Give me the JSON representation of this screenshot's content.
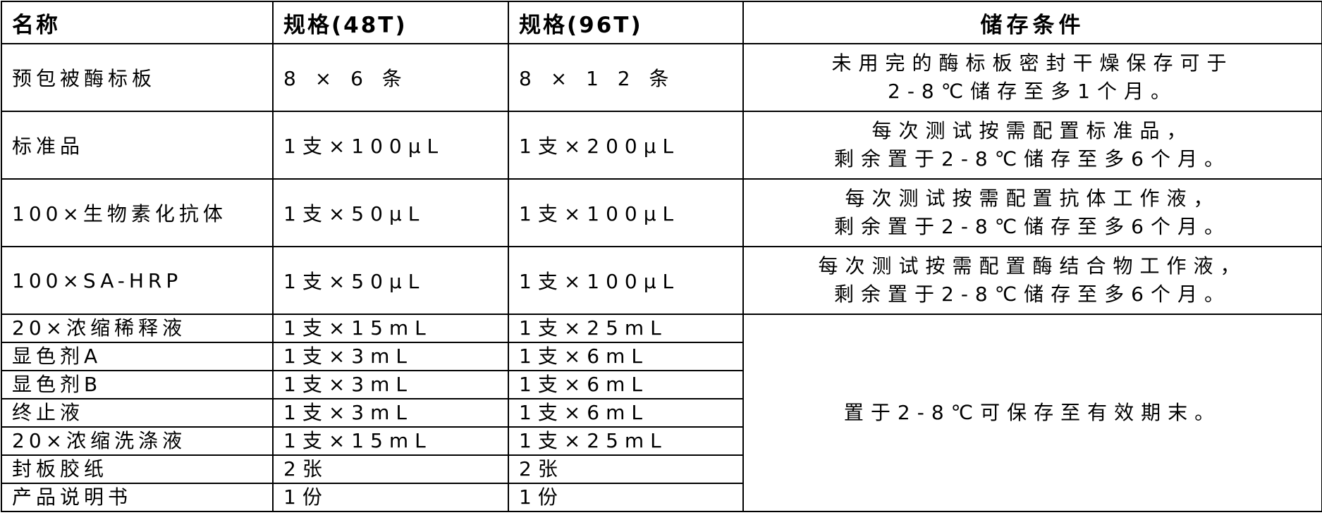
{
  "headers": [
    "名称",
    "规格(48T)",
    "规格(96T)",
    "储存条件"
  ],
  "rows": [
    {
      "name": "预包被酶标板",
      "spec48": "8 × 6 条",
      "spec96": "8 × 1 2 条",
      "storage": [
        "未用完的酶标板密封干燥保存可于",
        "2-8℃储存至多1个月。"
      ]
    },
    {
      "name": "标准品",
      "spec48": "1支×100μL",
      "spec96": "1支×200μL",
      "storage": [
        "每次测试按需配置标准品，",
        "剩余置于2-8℃储存至多6个月。"
      ]
    },
    {
      "name": "100×生物素化抗体",
      "spec48": "1支×50μL",
      "spec96": "1支×100μL",
      "storage": [
        "每次测试按需配置抗体工作液，",
        "剩余置于2-8℃储存至多6个月。"
      ]
    },
    {
      "name": "100×SA-HRP",
      "spec48": "1支×50μL",
      "spec96": "1支×100μL",
      "storage": [
        "每次测试按需配置酶结合物工作液，",
        "剩余置于2-8℃储存至多6个月。"
      ]
    },
    {
      "name": "20×浓缩稀释液",
      "spec48": "1支×15mL",
      "spec96": "1支×25mL"
    },
    {
      "name": "显色剂A",
      "spec48": "1支×3mL",
      "spec96": "1支×6mL"
    },
    {
      "name": "显色剂B",
      "spec48": "1支×3mL",
      "spec96": "1支×6mL"
    },
    {
      "name": "终止液",
      "spec48": "1支×3mL",
      "spec96": "1支×6mL"
    },
    {
      "name": "20×浓缩洗涤液",
      "spec48": "1支×15mL",
      "spec96": "1支×25mL"
    },
    {
      "name": "封板胶纸",
      "spec48": "2张",
      "spec96": "2张"
    },
    {
      "name": "产品说明书",
      "spec48": "1份",
      "spec96": "1份"
    }
  ],
  "shared_storage": "置于2-8℃可保存至有效期末。"
}
